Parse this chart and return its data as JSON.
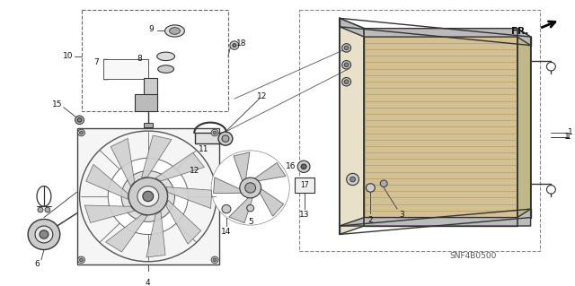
{
  "bg_color": "#ffffff",
  "diagram_color": "#333333",
  "label_color": "#111111",
  "model_code": "SNF4B0500",
  "figsize": [
    6.4,
    3.19
  ],
  "dpi": 100
}
